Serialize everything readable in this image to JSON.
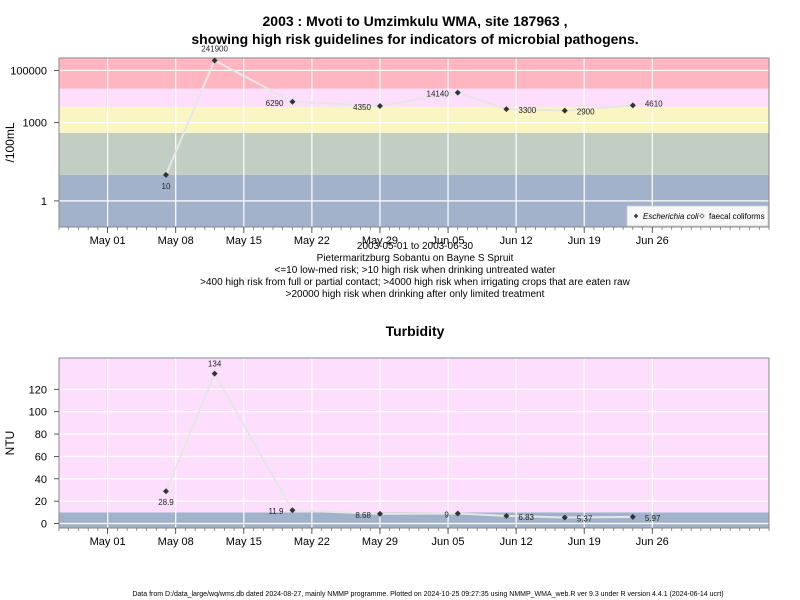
{
  "colors": {
    "red": "#FFB6C1",
    "pink": "#FDDFFD",
    "yellow": "#FAF6C4",
    "green": "#C2CDC3",
    "blue": "#A3B2CB",
    "plot_bg": "#FDDFFD",
    "line": "#E6E6E6",
    "marker": "#333333"
  },
  "chart_data": [
    {
      "type": "line",
      "title_line1": "2003 : Mvoti to Umzimkulu WMA, site 187963 ,",
      "title_line2": "showing high risk guidelines for indicators of microbial pathogens.",
      "ylabel": "/100mL",
      "y_scale": "log10",
      "ylim": [
        0.1,
        300000
      ],
      "yticks": [
        {
          "v": 1,
          "label": "1"
        },
        {
          "v": 1000,
          "label": "1000"
        },
        {
          "v": 100000,
          "label": "100000"
        }
      ],
      "xlim": [
        "2003-04-26",
        "2003-07-08"
      ],
      "xticks": [
        "May 01",
        "May 08",
        "May 15",
        "May 22",
        "May 29",
        "Jun 05",
        "Jun 12",
        "Jun 19",
        "Jun 26"
      ],
      "xtick_dates": [
        "2003-05-01",
        "2003-05-08",
        "2003-05-15",
        "2003-05-22",
        "2003-05-29",
        "2003-06-05",
        "2003-06-12",
        "2003-06-19",
        "2003-06-26"
      ],
      "bands": [
        {
          "from": 0.1,
          "to": 10,
          "color": "blue"
        },
        {
          "from": 10,
          "to": 400,
          "color": "green"
        },
        {
          "from": 400,
          "to": 4000,
          "color": "yellow"
        },
        {
          "from": 4000,
          "to": 20000,
          "color": "pink"
        },
        {
          "from": 20000,
          "to": 300000,
          "color": "red"
        }
      ],
      "series": [
        {
          "name": "Escherichia coli",
          "x": [
            "2003-05-07",
            "2003-05-12",
            "2003-05-20",
            "2003-05-29",
            "2003-06-06",
            "2003-06-11",
            "2003-06-17",
            "2003-06-24"
          ],
          "values": [
            10,
            241900,
            6290,
            4350,
            14140,
            3300,
            2900,
            4610
          ]
        }
      ],
      "legend": {
        "placement": "bottom-right",
        "items": [
          "Escherichia coli",
          "faecal coliforms"
        ]
      },
      "notes": [
        "2003-05-01 to 2003-06-30",
        "Pietermaritzburg Sobantu on Bayne S Spruit",
        "<=10 low-med risk; >10 high risk when drinking untreated water",
        ">400 high risk from full or partial contact; >4000 high risk when irrigating crops that are eaten raw",
        ">20000 high risk when drinking after only limited treatment"
      ]
    },
    {
      "type": "line",
      "title": "Turbidity",
      "ylabel": "NTU",
      "y_scale": "linear",
      "ylim": [
        -4,
        148
      ],
      "yticks": [
        0,
        20,
        40,
        60,
        80,
        100,
        120
      ],
      "xlim": [
        "2003-04-26",
        "2003-07-08"
      ],
      "xticks": [
        "May 01",
        "May 08",
        "May 15",
        "May 22",
        "May 29",
        "Jun 05",
        "Jun 12",
        "Jun 19",
        "Jun 26"
      ],
      "xtick_dates": [
        "2003-05-01",
        "2003-05-08",
        "2003-05-15",
        "2003-05-22",
        "2003-05-29",
        "2003-06-05",
        "2003-06-12",
        "2003-06-19",
        "2003-06-26"
      ],
      "bands": [
        {
          "from": -4,
          "to": 10,
          "color": "blue"
        },
        {
          "from": 10,
          "to": 148,
          "color": "pink"
        }
      ],
      "series": [
        {
          "x": [
            "2003-05-07",
            "2003-05-12",
            "2003-05-20",
            "2003-05-29",
            "2003-06-06",
            "2003-06-11",
            "2003-06-17",
            "2003-06-24"
          ],
          "values": [
            28.9,
            134,
            11.9,
            8.68,
            9,
            6.83,
            5.37,
            5.97
          ],
          "labels": [
            "28.9",
            "134",
            "11.9",
            "8.68",
            "9",
            "6.83",
            "5.37",
            "5.97"
          ]
        }
      ]
    }
  ],
  "footer": "Data from D:/data_large/wq/wms.db dated 2024-08-27, mainly NMMP programme. Plotted on 2024-10-25 09:27:35 using NMMP_WMA_web.R ver 9.3 under R version 4.4.1 (2024-06-14 ucrt)"
}
